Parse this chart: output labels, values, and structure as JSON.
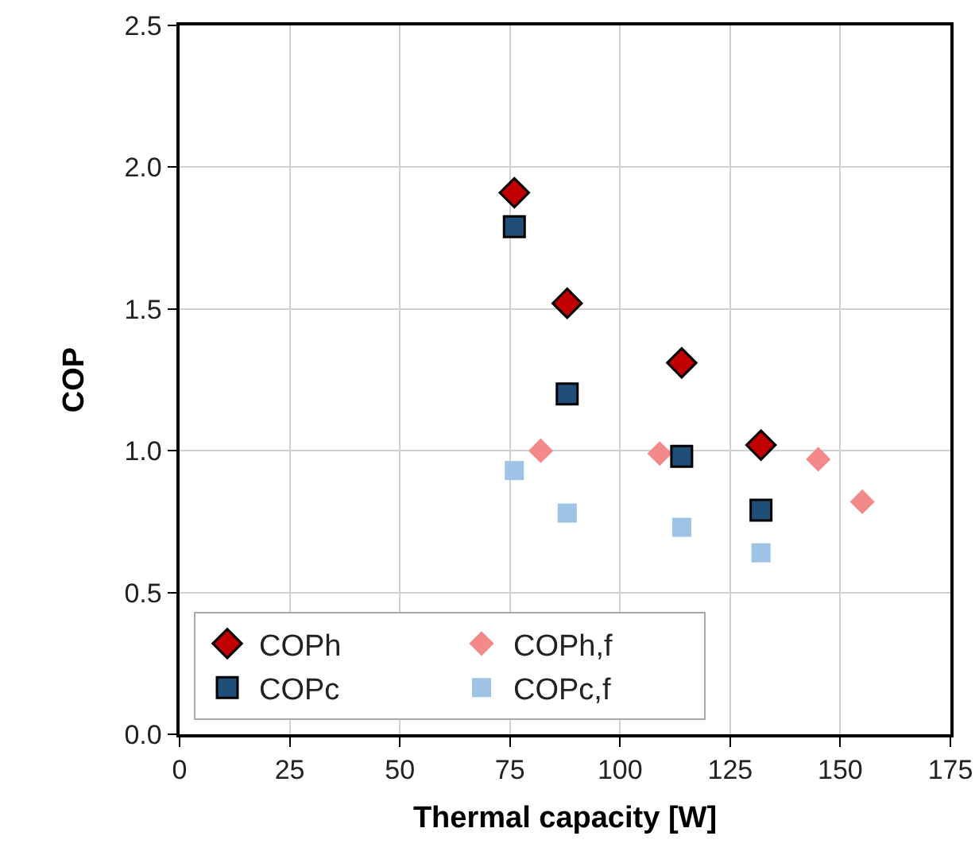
{
  "chart_data": {
    "type": "scatter",
    "xlabel": "Thermal capacity [W]",
    "ylabel": "COP",
    "xlim": [
      0,
      175
    ],
    "xticks": [
      0,
      25,
      50,
      75,
      100,
      125,
      150,
      175
    ],
    "ylim": [
      0,
      2.5
    ],
    "yticks": [
      {
        "value": 0,
        "label": "0.0"
      },
      {
        "value": 0.5,
        "label": "0.5"
      },
      {
        "value": 1,
        "label": "1.0"
      },
      {
        "value": 1.5,
        "label": "1.5"
      },
      {
        "value": 2,
        "label": "2.0"
      },
      {
        "value": 2.5,
        "label": "2.5"
      }
    ],
    "grid": true,
    "legend": "bottom left",
    "series": [
      {
        "name": "COPh",
        "color": "#c00000",
        "marker": "diamond",
        "x": [
          76,
          88,
          114,
          132
        ],
        "values": [
          1.91,
          1.52,
          1.31,
          1.02
        ]
      },
      {
        "name": "COPh,f",
        "color": "#f4898a",
        "marker": "diamond",
        "x": [
          82,
          109,
          145,
          155
        ],
        "values": [
          1.0,
          0.99,
          0.97,
          0.82
        ]
      },
      {
        "name": "COPc",
        "color": "#1f4e79",
        "marker": "square",
        "x": [
          76,
          88,
          114,
          132
        ],
        "values": [
          1.79,
          1.2,
          0.98,
          0.79
        ]
      },
      {
        "name": "COPc,f",
        "color": "#9dc3e6",
        "marker": "square",
        "x": [
          76,
          88,
          114,
          132
        ],
        "values": [
          0.93,
          0.78,
          0.73,
          0.64
        ]
      }
    ]
  }
}
